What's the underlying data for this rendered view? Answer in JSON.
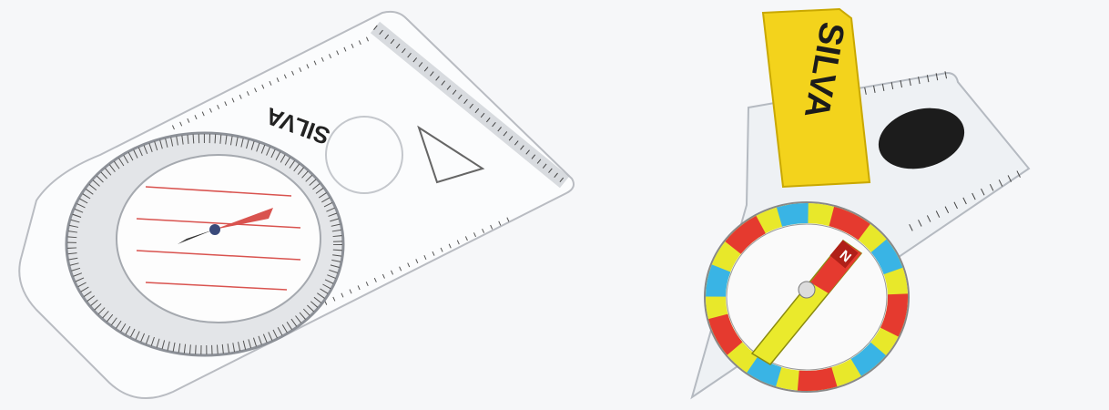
{
  "baseplate_compass": {
    "brand": "SILVA"
  },
  "thumb_compass": {
    "strap_brand": "SILVA",
    "needle_label": "N"
  }
}
